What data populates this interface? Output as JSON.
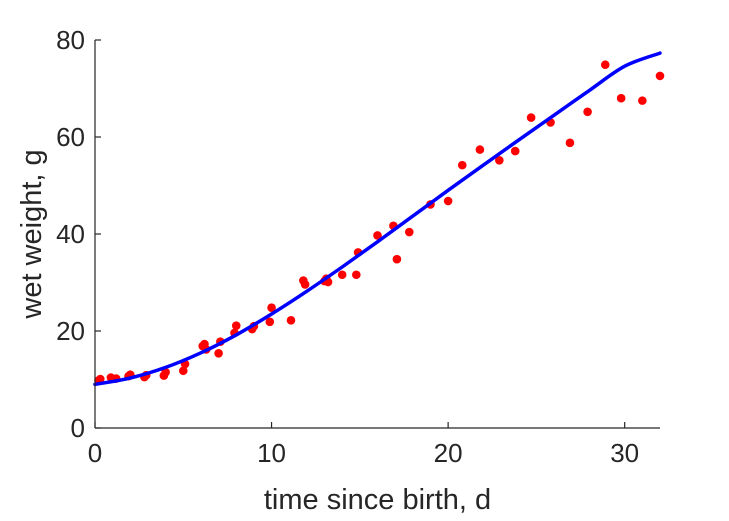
{
  "chart_data": {
    "type": "scatter",
    "title": "",
    "xlabel": "time since birth, d",
    "ylabel": "wet weight, g",
    "xlim": [
      0,
      32
    ],
    "ylim": [
      0,
      80
    ],
    "xticks": [
      0,
      10,
      20,
      30
    ],
    "yticks": [
      0,
      20,
      40,
      60,
      80
    ],
    "grid": false,
    "colors": {
      "points": "#ff0000",
      "curve": "#0000ff",
      "axes": "#262626"
    },
    "series": [
      {
        "kind": "points",
        "x": [
          0.2,
          0.3,
          0.9,
          1.2,
          1.9,
          2.0,
          2.8,
          2.9,
          3.9,
          4.0,
          5.0,
          5.1,
          6.1,
          6.2,
          6.3,
          7.0,
          7.1,
          7.9,
          8.0,
          8.9,
          9.0,
          9.9,
          10.0,
          11.1,
          11.8,
          11.9,
          13.0,
          13.1,
          13.2,
          14.0,
          14.8,
          14.9,
          16.0,
          16.9,
          17.1,
          17.8,
          19.0,
          20.0,
          20.8,
          21.8,
          22.9,
          23.8,
          24.7,
          25.8,
          26.9,
          27.9,
          28.9,
          29.8,
          31.0,
          32.0
        ],
        "y": [
          9.8,
          10.1,
          10.4,
          10.2,
          10.7,
          11.0,
          10.5,
          10.9,
          10.8,
          11.5,
          11.8,
          13.2,
          16.9,
          17.3,
          16.2,
          15.4,
          17.8,
          19.6,
          21.1,
          20.4,
          21.0,
          21.9,
          24.8,
          22.2,
          30.4,
          29.6,
          30.3,
          30.8,
          30.1,
          31.6,
          31.6,
          36.2,
          39.7,
          41.7,
          34.8,
          40.4,
          46.1,
          46.8,
          54.2,
          57.4,
          55.2,
          57.1,
          64.0,
          63.0,
          58.8,
          65.2,
          74.9,
          68.0,
          67.5,
          72.6
        ]
      },
      {
        "kind": "fit-curve",
        "x": [
          0,
          2,
          4,
          6,
          8,
          10,
          12,
          14,
          16,
          18,
          20,
          22,
          24,
          26,
          28,
          30,
          32
        ],
        "y": [
          9.0,
          10.3,
          12.5,
          15.5,
          19.2,
          23.5,
          28.2,
          33.2,
          38.4,
          43.7,
          49.0,
          54.2,
          59.4,
          64.5,
          69.6,
          74.6,
          77.3
        ]
      }
    ]
  }
}
